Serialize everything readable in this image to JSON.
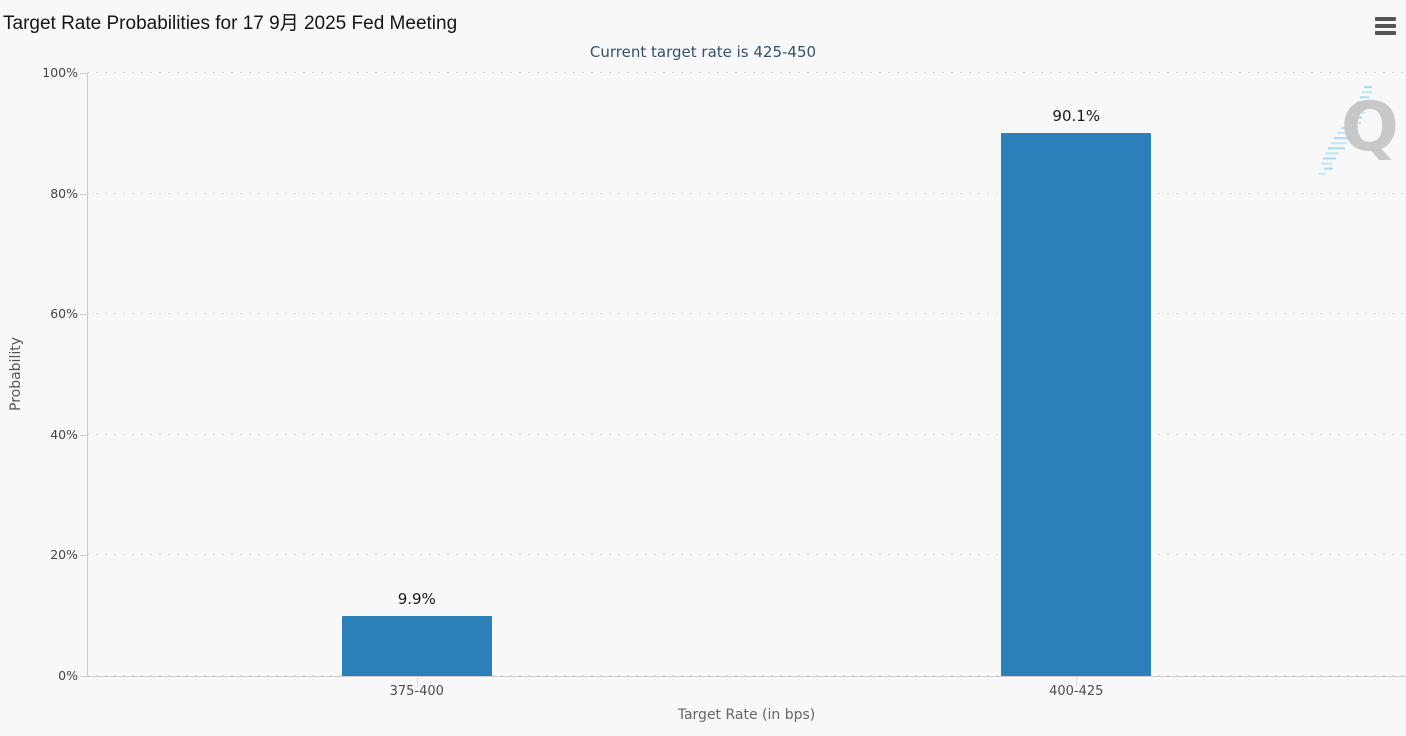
{
  "page": {
    "watermark": {
      "letter": "Q"
    },
    "icons": {
      "menu": "hamburger-menu-icon",
      "watermark": "quikstrike-q-lightning-logo"
    }
  },
  "chart_data": {
    "type": "bar",
    "title": "Target Rate Probabilities for 17 9月 2025 Fed Meeting",
    "subtitle": "Current target rate is 425-450",
    "categories": [
      "375-400",
      "400-425"
    ],
    "values": [
      9.9,
      90.1
    ],
    "value_labels": [
      "9.9%",
      "90.1%"
    ],
    "series_name": "Probability",
    "xlabel": "Target Rate (in bps)",
    "ylabel": "Probability",
    "ylim": [
      0,
      100
    ],
    "yticks": [
      0,
      20,
      40,
      60,
      80,
      100
    ],
    "ytick_labels": [
      "0%",
      "20%",
      "40%",
      "60%",
      "80%",
      "100%"
    ],
    "grid": "horizontal-dotted",
    "legend": "none",
    "colors": {
      "bar": "#2c80b9",
      "background": "#f8f8f8",
      "title_text": "#151515",
      "subtitle_text": "#34506e",
      "axis_line": "#cccccc",
      "gridline": "#d8d8d8",
      "tick_label": "#444444",
      "category_label": "#4d4d4d",
      "axis_title": "#666666",
      "data_label": "#1a1a1a",
      "watermark_gray": "#c3c3c3",
      "watermark_blue": "#a9dbf2",
      "menu_icon": "#545454"
    }
  }
}
